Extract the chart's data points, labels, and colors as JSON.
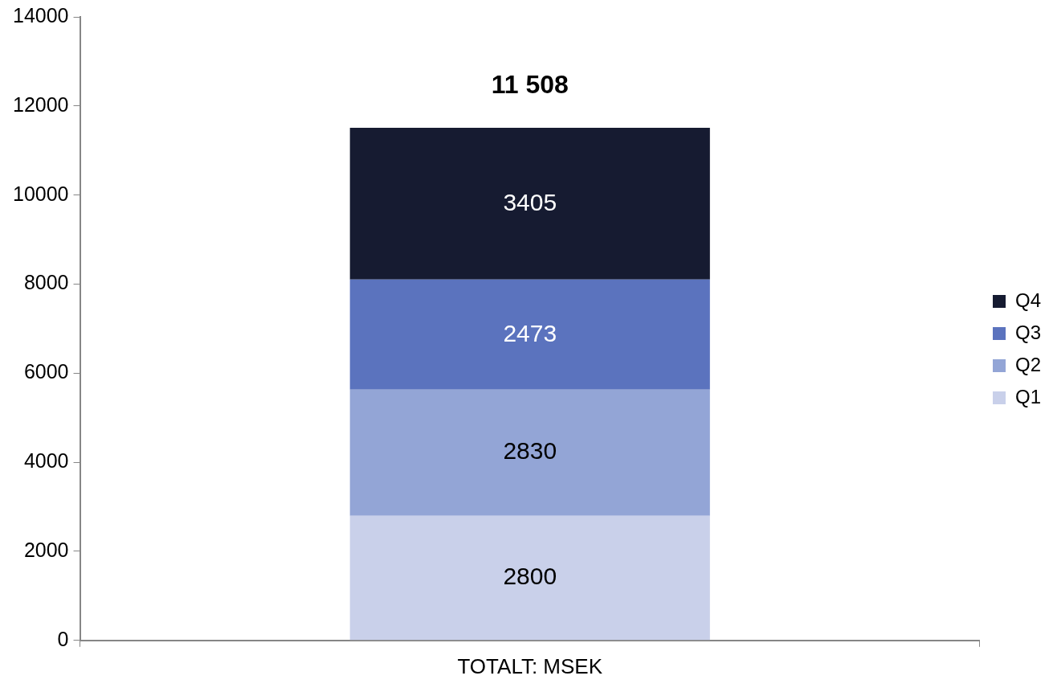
{
  "chart_data": {
    "type": "bar",
    "stacked": true,
    "categories": [
      "TOTALT: MSEK"
    ],
    "series": [
      {
        "name": "Q1",
        "color": "#c9d0ea",
        "values": [
          2800
        ]
      },
      {
        "name": "Q2",
        "color": "#93a5d6",
        "values": [
          2830
        ]
      },
      {
        "name": "Q3",
        "color": "#5b73be",
        "values": [
          2473
        ]
      },
      {
        "name": "Q4",
        "color": "#161b31",
        "values": [
          3405
        ]
      }
    ],
    "ylim": [
      0,
      14000
    ],
    "yticks": [
      0,
      2000,
      4000,
      6000,
      8000,
      10000,
      12000,
      14000
    ],
    "data_labels": true,
    "totals": [
      "11 508"
    ],
    "grid": false,
    "legend": "right"
  }
}
